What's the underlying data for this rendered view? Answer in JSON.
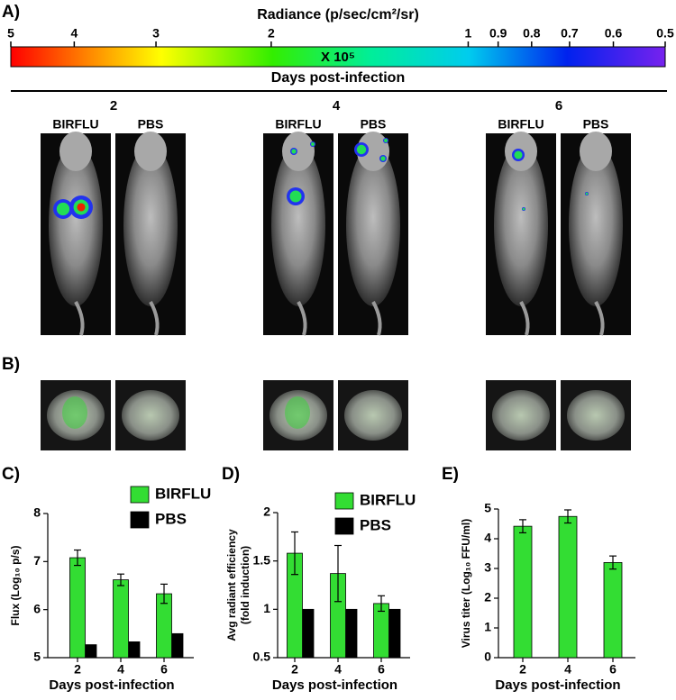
{
  "panels": [
    "A)",
    "B)",
    "C)",
    "D)",
    "E)"
  ],
  "colorbar": {
    "title": "Radiance (p/sec/cm²/sr)",
    "multiplier": "X 10⁵",
    "lim": [
      5,
      0.5
    ],
    "log": true,
    "ticks": [
      5,
      4,
      3,
      2,
      1,
      0.9,
      0.8,
      0.7,
      0.6,
      0.5
    ],
    "label": "Days post-infection"
  },
  "imaging": {
    "days": [
      "2",
      "4",
      "6"
    ],
    "groups": [
      "BIRFLU",
      "PBS"
    ]
  },
  "chart_data": [
    {
      "type": "bar",
      "categories": [
        "2",
        "4",
        "6"
      ],
      "xlabel": "Days post-infection",
      "ylabel": "Flux (Log₁₀ p/s)",
      "ylim": [
        5,
        8
      ],
      "yticks": [
        5,
        6,
        7,
        8
      ],
      "legend": "top-right",
      "series": [
        {
          "name": "BIRFLU",
          "color": "#33dd33",
          "values": [
            7.08,
            6.62,
            6.33
          ],
          "errors": [
            0.16,
            0.12,
            0.2
          ]
        },
        {
          "name": "PBS",
          "color": "#000000",
          "values": [
            5.27,
            5.33,
            5.5
          ]
        }
      ]
    },
    {
      "type": "bar",
      "categories": [
        "2",
        "4",
        "6"
      ],
      "xlabel": "Days post-infection",
      "ylabel": [
        "Avg radiant efficiency",
        "(fold induction)"
      ],
      "ylim": [
        0.5,
        2
      ],
      "yticks": [
        0.5,
        1,
        1.5,
        2
      ],
      "legend": "top-right",
      "series": [
        {
          "name": "BIRFLU",
          "color": "#33dd33",
          "values": [
            1.58,
            1.37,
            1.06
          ],
          "errors": [
            0.22,
            0.29,
            0.08
          ]
        },
        {
          "name": "PBS",
          "color": "#000000",
          "values": [
            1,
            1,
            1
          ]
        }
      ]
    },
    {
      "type": "bar",
      "categories": [
        "2",
        "4",
        "6"
      ],
      "xlabel": "Days post-infection",
      "ylabel": "Virus titer (Log₁₀ FFU/ml)",
      "ylim": [
        0,
        5
      ],
      "yticks": [
        0,
        1,
        2,
        3,
        4,
        5
      ],
      "series": [
        {
          "color": "#33dd33",
          "values": [
            4.42,
            4.75,
            3.2
          ],
          "errors": [
            0.22,
            0.22,
            0.22
          ]
        }
      ]
    }
  ]
}
